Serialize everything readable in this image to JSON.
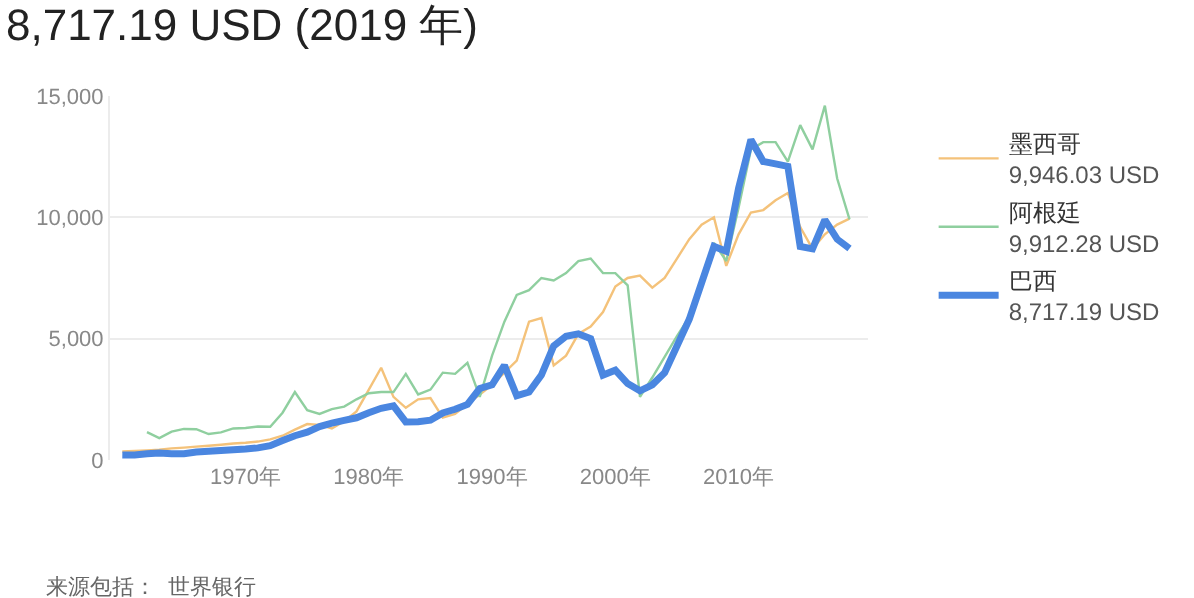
{
  "chart_data": {
    "type": "line",
    "title": "8,717.19 USD (2019 年)",
    "x": [
      1960,
      1961,
      1962,
      1963,
      1964,
      1965,
      1966,
      1967,
      1968,
      1969,
      1970,
      1971,
      1972,
      1973,
      1974,
      1975,
      1976,
      1977,
      1978,
      1979,
      1980,
      1981,
      1982,
      1983,
      1984,
      1985,
      1986,
      1987,
      1988,
      1989,
      1990,
      1991,
      1992,
      1993,
      1994,
      1995,
      1996,
      1997,
      1998,
      1999,
      2000,
      2001,
      2002,
      2003,
      2004,
      2005,
      2006,
      2007,
      2008,
      2009,
      2010,
      2011,
      2012,
      2013,
      2014,
      2015,
      2016,
      2017,
      2018,
      2019
    ],
    "series": [
      {
        "name": "墨西哥",
        "color": "#f4c27a",
        "values": [
          350,
          370,
          390,
          420,
          480,
          510,
          550,
          590,
          630,
          680,
          710,
          760,
          850,
          1000,
          1250,
          1480,
          1450,
          1300,
          1600,
          2000,
          2900,
          3800,
          2600,
          2150,
          2500,
          2550,
          1750,
          1900,
          2300,
          2700,
          3100,
          3600,
          4100,
          5700,
          5850,
          3900,
          4300,
          5200,
          5500,
          6100,
          7150,
          7500,
          7600,
          7100,
          7500,
          8300,
          9100,
          9700,
          10000,
          8000,
          9300,
          10200,
          10300,
          10700,
          11000,
          9600,
          8700,
          9300,
          9700,
          9946.03
        ]
      },
      {
        "name": "阿根廷",
        "color": "#8fcf9f",
        "values": [
          null,
          null,
          1150,
          900,
          1170,
          1280,
          1270,
          1070,
          1140,
          1300,
          1320,
          1380,
          1370,
          1950,
          2800,
          2050,
          1900,
          2100,
          2200,
          2500,
          2750,
          2800,
          2800,
          3550,
          2700,
          2900,
          3600,
          3550,
          4000,
          2600,
          4300,
          5700,
          6800,
          7000,
          7500,
          7400,
          7700,
          8200,
          8300,
          7700,
          7700,
          7200,
          2600,
          3400,
          4250,
          5100,
          5900,
          7200,
          8950,
          8200,
          10400,
          12800,
          13100,
          13100,
          12300,
          13800,
          12800,
          14600,
          11600,
          9912.28
        ]
      },
      {
        "name": "巴西",
        "color": "#4a86e0",
        "values": [
          210,
          205,
          260,
          290,
          255,
          260,
          330,
          360,
          390,
          420,
          450,
          500,
          590,
          800,
          1000,
          1150,
          1380,
          1520,
          1630,
          1740,
          1950,
          2130,
          2230,
          1570,
          1580,
          1640,
          1940,
          2090,
          2290,
          2950,
          3100,
          3900,
          2650,
          2800,
          3500,
          4700,
          5100,
          5200,
          5000,
          3500,
          3700,
          3150,
          2850,
          3100,
          3600,
          4700,
          5800,
          7300,
          8800,
          8600,
          11200,
          13200,
          12300,
          12200,
          12100,
          8800,
          8700,
          9900,
          9100,
          8717.19
        ]
      }
    ],
    "annotations": [
      "9,946.03 USD",
      "9,912.28 USD",
      "8,717.19 USD",
      "来源包括：  世界银行"
    ],
    "xlim": [
      1959,
      2020.5
    ],
    "xticks": [
      {
        "value": 1970,
        "label": "1970年"
      },
      {
        "value": 1980,
        "label": "1980年"
      },
      {
        "value": 1990,
        "label": "1990年"
      },
      {
        "value": 2000,
        "label": "2000年"
      },
      {
        "value": 2010,
        "label": "2010年"
      }
    ],
    "ylim": [
      0,
      15000
    ],
    "yticks": [
      {
        "value": 0,
        "label": "0"
      },
      {
        "value": 5000,
        "label": "5,000"
      },
      {
        "value": 10000,
        "label": "10,000"
      },
      {
        "value": 15000,
        "label": "15,000"
      }
    ],
    "grid": "y",
    "legend": "right"
  }
}
